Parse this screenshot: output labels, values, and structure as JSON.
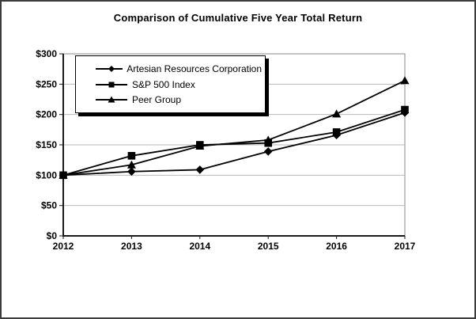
{
  "chart_data": {
    "type": "line",
    "title": "Comparison of Cumulative Five Year Total Return",
    "categories": [
      "2012",
      "2013",
      "2014",
      "2015",
      "2016",
      "2017"
    ],
    "series": [
      {
        "name": "Artesian Resources Corporation",
        "marker": "diamond",
        "color": "#000000",
        "values": [
          100,
          106,
          109,
          139,
          166,
          203
        ]
      },
      {
        "name": "S&P 500 Index",
        "marker": "square",
        "color": "#000000",
        "values": [
          100,
          132,
          150,
          153,
          171,
          208
        ]
      },
      {
        "name": "Peer Group",
        "marker": "triangle",
        "color": "#000000",
        "values": [
          100,
          117,
          148,
          158,
          201,
          256
        ]
      }
    ],
    "xlabel": "",
    "ylabel": "",
    "ylim": [
      0,
      300
    ],
    "ytick_step": 50,
    "ytick_labels": [
      "$0",
      "$50",
      "$100",
      "$150",
      "$200",
      "$250",
      "$300"
    ],
    "grid": true,
    "legend_position": "top-left",
    "colors": {
      "line": "#000000",
      "axis": "#1a1a1a",
      "gridline": "#b8b8b8",
      "plot_border": "#888888",
      "legend_shadow": "#000000",
      "background": "#ffffff"
    }
  }
}
